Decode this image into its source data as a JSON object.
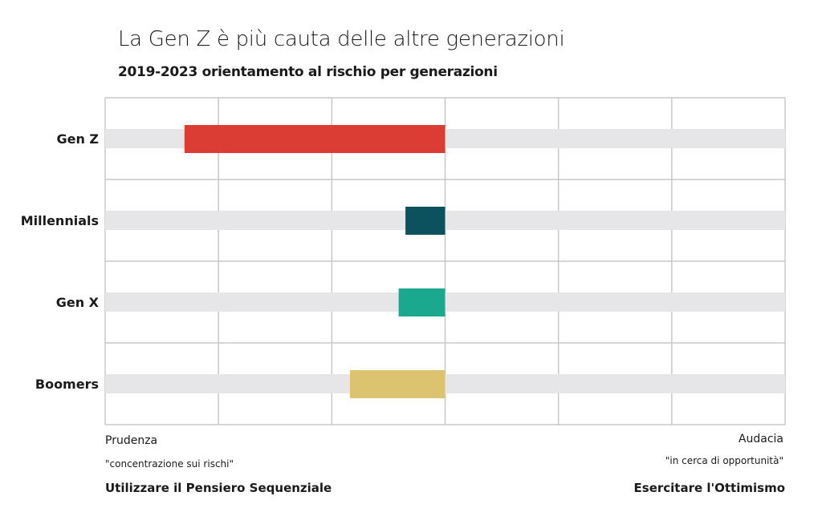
{
  "chart_data": {
    "type": "bar",
    "title": "La Gen Z è più cauta delle altre generazioni",
    "subtitle": "2019-2023 orientamento al rischio per generazioni",
    "categories": [
      "Gen Z",
      "Millennials",
      "Gen X",
      "Boomers"
    ],
    "values": [
      -2.3,
      -0.35,
      -0.41,
      -0.84
    ],
    "colors": [
      "#db3d34",
      "#0b525e",
      "#1aa98e",
      "#dbc36f"
    ],
    "track_color": "#e6e6e8",
    "grid_color": "#c8c8c8",
    "xlim": [
      -3,
      3
    ],
    "grid": true,
    "orientation": "horizontal",
    "left_label": {
      "title": "Prudenza",
      "note": "\"concentrazione sui rischi\"",
      "action": "Utilizzare il Pensiero Sequenziale"
    },
    "right_label": {
      "title": "Audacia",
      "note": "\"in cerca di opportunità\"",
      "action": "Esercitare l'Ottimismo"
    }
  }
}
